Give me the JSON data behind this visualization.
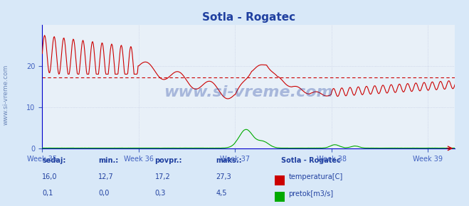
{
  "title": "Sotla - Rogatec",
  "bg_color": "#d8e8f8",
  "plot_bg_color": "#e8f0f8",
  "title_color": "#2040a0",
  "axis_color": "#4060c0",
  "grid_color": "#c0c8e0",
  "temp_color": "#cc0000",
  "flow_color": "#00aa00",
  "avg_line_color": "#cc0000",
  "avg_value": 17.2,
  "ylim": [
    0,
    30
  ],
  "yticks": [
    0,
    10,
    20
  ],
  "week_labels": [
    "Week 35",
    "Week 36",
    "Week 37",
    "Week 38",
    "Week 39"
  ],
  "week_positions": [
    0,
    168,
    336,
    504,
    672
  ],
  "total_points": 720,
  "watermark": "www.si-vreme.com",
  "legend_title": "Sotla - Rogatec",
  "table_headers": [
    "sedaj:",
    "min.:",
    "povpr.:",
    "maks.:"
  ],
  "table_row1": [
    "16,0",
    "12,7",
    "17,2",
    "27,3"
  ],
  "table_row2": [
    "0,1",
    "0,0",
    "0,3",
    "4,5"
  ],
  "table_color": "#2040a0"
}
